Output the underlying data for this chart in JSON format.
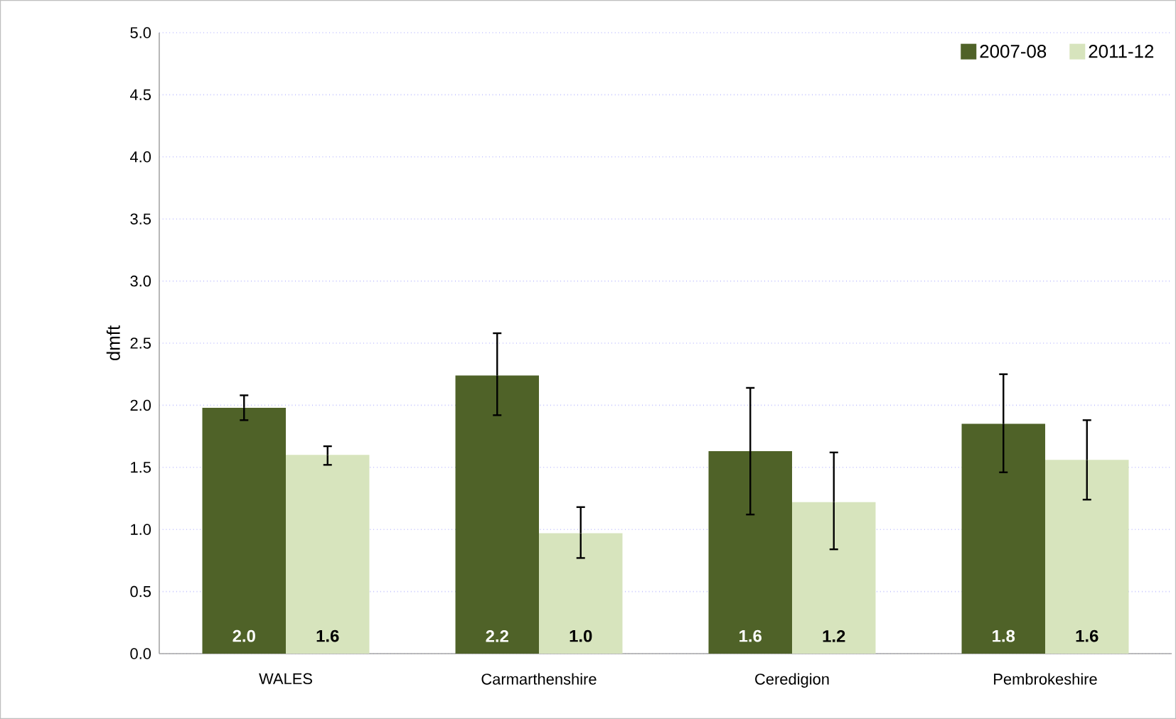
{
  "chart_data": {
    "type": "bar",
    "ylabel": "dmft",
    "categories": [
      "WALES",
      "Carmarthenshire",
      "Ceredigion",
      "Pembrokeshire"
    ],
    "series": [
      {
        "name": "2007-08",
        "color": "#4f6228",
        "values": [
          1.98,
          2.24,
          1.63,
          1.85
        ],
        "errors": [
          [
            1.88,
            2.08
          ],
          [
            1.92,
            2.58
          ],
          [
            1.12,
            2.14
          ],
          [
            1.46,
            2.25
          ]
        ],
        "value_labels": [
          "2.0",
          "2.2",
          "1.6",
          "1.8"
        ]
      },
      {
        "name": "2011-12",
        "color": "#d7e4bd",
        "values": [
          1.6,
          0.97,
          1.22,
          1.56
        ],
        "errors": [
          [
            1.52,
            1.67
          ],
          [
            0.77,
            1.18
          ],
          [
            0.84,
            1.62
          ],
          [
            1.24,
            1.88
          ]
        ],
        "value_labels": [
          "1.6",
          "1.0",
          "1.2",
          "1.6"
        ]
      }
    ],
    "ylim": [
      0,
      5
    ],
    "yticks": [
      {
        "value": 0,
        "label": "0.0"
      },
      {
        "value": 0.5,
        "label": "0.5"
      },
      {
        "value": 1,
        "label": "1.0"
      },
      {
        "value": 1.5,
        "label": "1.5"
      },
      {
        "value": 2,
        "label": "2.0"
      },
      {
        "value": 2.5,
        "label": "2.5"
      },
      {
        "value": 3,
        "label": "3.0"
      },
      {
        "value": 3.5,
        "label": "3.5"
      },
      {
        "value": 4,
        "label": "4.0"
      },
      {
        "value": 4.5,
        "label": "4.5"
      },
      {
        "value": 5,
        "label": "5.0"
      }
    ],
    "grid": "y",
    "legend": "top right"
  }
}
